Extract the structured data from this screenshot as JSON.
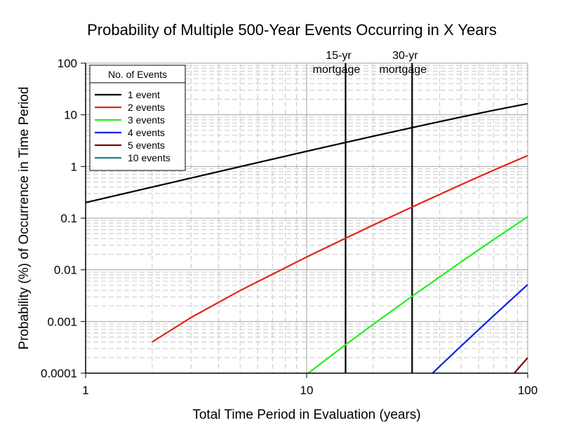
{
  "chart_data": {
    "type": "line",
    "title": "Probability of Multiple 500-Year Events Occurring in X Years",
    "xlabel": "Total Time Period in Evaluation (years)",
    "ylabel": "Probability (%) of Occurrence in Time Period",
    "xscale": "log",
    "yscale": "log",
    "xlim": [
      1,
      100
    ],
    "ylim": [
      0.0001,
      100
    ],
    "x_ticks": [
      "1",
      "10",
      "100"
    ],
    "y_ticks": [
      "0.0001",
      "0.001",
      "0.01",
      "0.1",
      "1",
      "10",
      "100"
    ],
    "grid": true,
    "legend": {
      "title": "No. of Events",
      "placement": "top-left"
    },
    "series": [
      {
        "name": "1 event",
        "color": "#000000",
        "points": [
          [
            1,
            0.2
          ],
          [
            2,
            0.3992
          ],
          [
            3,
            0.5976
          ],
          [
            5,
            0.992
          ],
          [
            10,
            1.964
          ],
          [
            15,
            2.917
          ],
          [
            20,
            3.851
          ],
          [
            30,
            5.662
          ],
          [
            50,
            9.066
          ],
          [
            70,
            12.19
          ],
          [
            100,
            16.4
          ]
        ]
      },
      {
        "name": "2 events",
        "color": "#e8211a",
        "points": [
          [
            2,
            0.0004
          ],
          [
            3,
            0.0011976
          ],
          [
            5,
            0.003976
          ],
          [
            10,
            0.01771
          ],
          [
            15,
            0.04092
          ],
          [
            20,
            0.07331
          ],
          [
            30,
            0.1645
          ],
          [
            50,
            0.4451
          ],
          [
            70,
            0.8431
          ],
          [
            100,
            1.627
          ]
        ]
      },
      {
        "name": "3 events",
        "color": "#22ee22",
        "points": [
          [
            10,
            9.47e-05
          ],
          [
            15,
            0.0003554
          ],
          [
            20,
            0.0008815
          ],
          [
            30,
            0.003077
          ],
          [
            50,
            0.01427
          ],
          [
            70,
            0.0383
          ],
          [
            100,
            0.1065
          ]
        ]
      },
      {
        "name": "4 events",
        "color": "#1020e0",
        "points": [
          [
            35,
            7.87e-05
          ],
          [
            40,
            0.000136
          ],
          [
            50,
            0.000336
          ],
          [
            70,
            0.001285
          ],
          [
            100,
            0.005177
          ]
        ]
      },
      {
        "name": "5 events",
        "color": "#7a0a0a",
        "points": [
          [
            80,
            6.62e-05
          ],
          [
            85,
            8.94e-05
          ],
          [
            90,
            0.0001186
          ],
          [
            100,
            0.0001992
          ]
        ]
      },
      {
        "name": "10 events",
        "color": "#118888",
        "points": []
      }
    ],
    "annotations": [
      {
        "x": 15,
        "label_line1": "15-yr",
        "label_line2": "mortgage"
      },
      {
        "x": 30,
        "label_line1": "30-yr",
        "label_line2": "mortgage"
      }
    ]
  }
}
